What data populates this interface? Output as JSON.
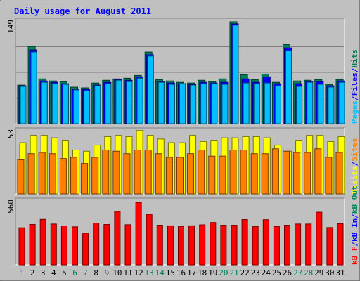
{
  "chart_data": {
    "type": "bar",
    "title": "Daily usage for August 2011",
    "days": [
      "1",
      "2",
      "3",
      "4",
      "5",
      "6",
      "7",
      "8",
      "9",
      "10",
      "11",
      "12",
      "13",
      "14",
      "15",
      "16",
      "17",
      "18",
      "19",
      "20",
      "21",
      "22",
      "23",
      "24",
      "25",
      "26",
      "27",
      "28",
      "29",
      "30",
      "31"
    ],
    "weekend_days": [
      "6",
      "7",
      "13",
      "14",
      "20",
      "21",
      "27",
      "28"
    ],
    "colors": {
      "background": "#c0c0c0",
      "border_dark": "#808080",
      "border_light": "#ffffff",
      "title": "#0000ff",
      "axis_max": "#000000",
      "weekday": "#000000",
      "weekend": "#00805c",
      "hits": "#00805c",
      "files": "#0000ff",
      "pages": "#00c0ff",
      "visits": "#ffff00",
      "sites": "#ff8000",
      "kbf": "#ff0000",
      "kbin": "#0000ff",
      "kbout": "#00805c"
    },
    "panels": [
      {
        "name": "hits-files-pages",
        "y_max_label": "149",
        "ylim": [
          0,
          149
        ],
        "legend": [
          "Pages",
          "/",
          "Files",
          "/",
          "Hits"
        ],
        "series": [
          {
            "name": "Hits",
            "values": [
              56,
              112,
              65,
              62,
              61,
              53,
              52,
              59,
              63,
              65,
              66,
              70,
              104,
              64,
              62,
              60,
              59,
              63,
              61,
              65,
              148,
              71,
              64,
              72,
              60,
              115,
              62,
              63,
              64,
              57,
              64
            ]
          },
          {
            "name": "Files",
            "values": [
              55,
              107,
              62,
              60,
              58,
              50,
              50,
              56,
              60,
              64,
              63,
              68,
              100,
              61,
              59,
              58,
              57,
              60,
              59,
              60,
              145,
              65,
              60,
              68,
              58,
              110,
              58,
              61,
              61,
              55,
              62
            ]
          },
          {
            "name": "Pages",
            "values": [
              54,
              104,
              60,
              58,
              57,
              49,
              48,
              55,
              58,
              63,
              61,
              66,
              98,
              60,
              57,
              58,
              56,
              58,
              58,
              57,
              143,
              59,
              58,
              59,
              55,
              106,
              54,
              60,
              57,
              53,
              60
            ]
          }
        ]
      },
      {
        "name": "visits-sites",
        "y_max_label": "53",
        "ylim": [
          0,
          53
        ],
        "legend": [
          "Visits",
          "/",
          "Sites"
        ],
        "series": [
          {
            "name": "Visits",
            "values": [
              42,
              48,
              48,
              46,
              44,
              36,
              35,
              40,
              47,
              48,
              47,
              52,
              48,
              45,
              42,
              42,
              48,
              43,
              44,
              46,
              46,
              47,
              47,
              46,
              40,
              35,
              44,
              48,
              48,
              43,
              47
            ]
          },
          {
            "name": "Sites",
            "values": [
              28,
              33,
              34,
              33,
              29,
              30,
              25,
              30,
              36,
              35,
              33,
              36,
              36,
              33,
              30,
              30,
              33,
              36,
              31,
              31,
              36,
              36,
              33,
              33,
              37,
              35,
              34,
              34,
              37,
              30,
              34
            ]
          }
        ]
      },
      {
        "name": "kbytes",
        "y_max_label": "560",
        "ylim": [
          0,
          560
        ],
        "legend": [
          "kB F",
          "/",
          "kB In",
          "/",
          "kB Out"
        ],
        "series": [
          {
            "name": "kB F",
            "values": [
              318,
              346,
              390,
              350,
              334,
              326,
              272,
              358,
              346,
              458,
              344,
              535,
              433,
              340,
              335,
              330,
              335,
              343,
              363,
              340,
              340,
              388,
              330,
              387,
              330,
              340,
              350,
              350,
              451,
              320,
              353
            ]
          }
        ]
      }
    ]
  }
}
